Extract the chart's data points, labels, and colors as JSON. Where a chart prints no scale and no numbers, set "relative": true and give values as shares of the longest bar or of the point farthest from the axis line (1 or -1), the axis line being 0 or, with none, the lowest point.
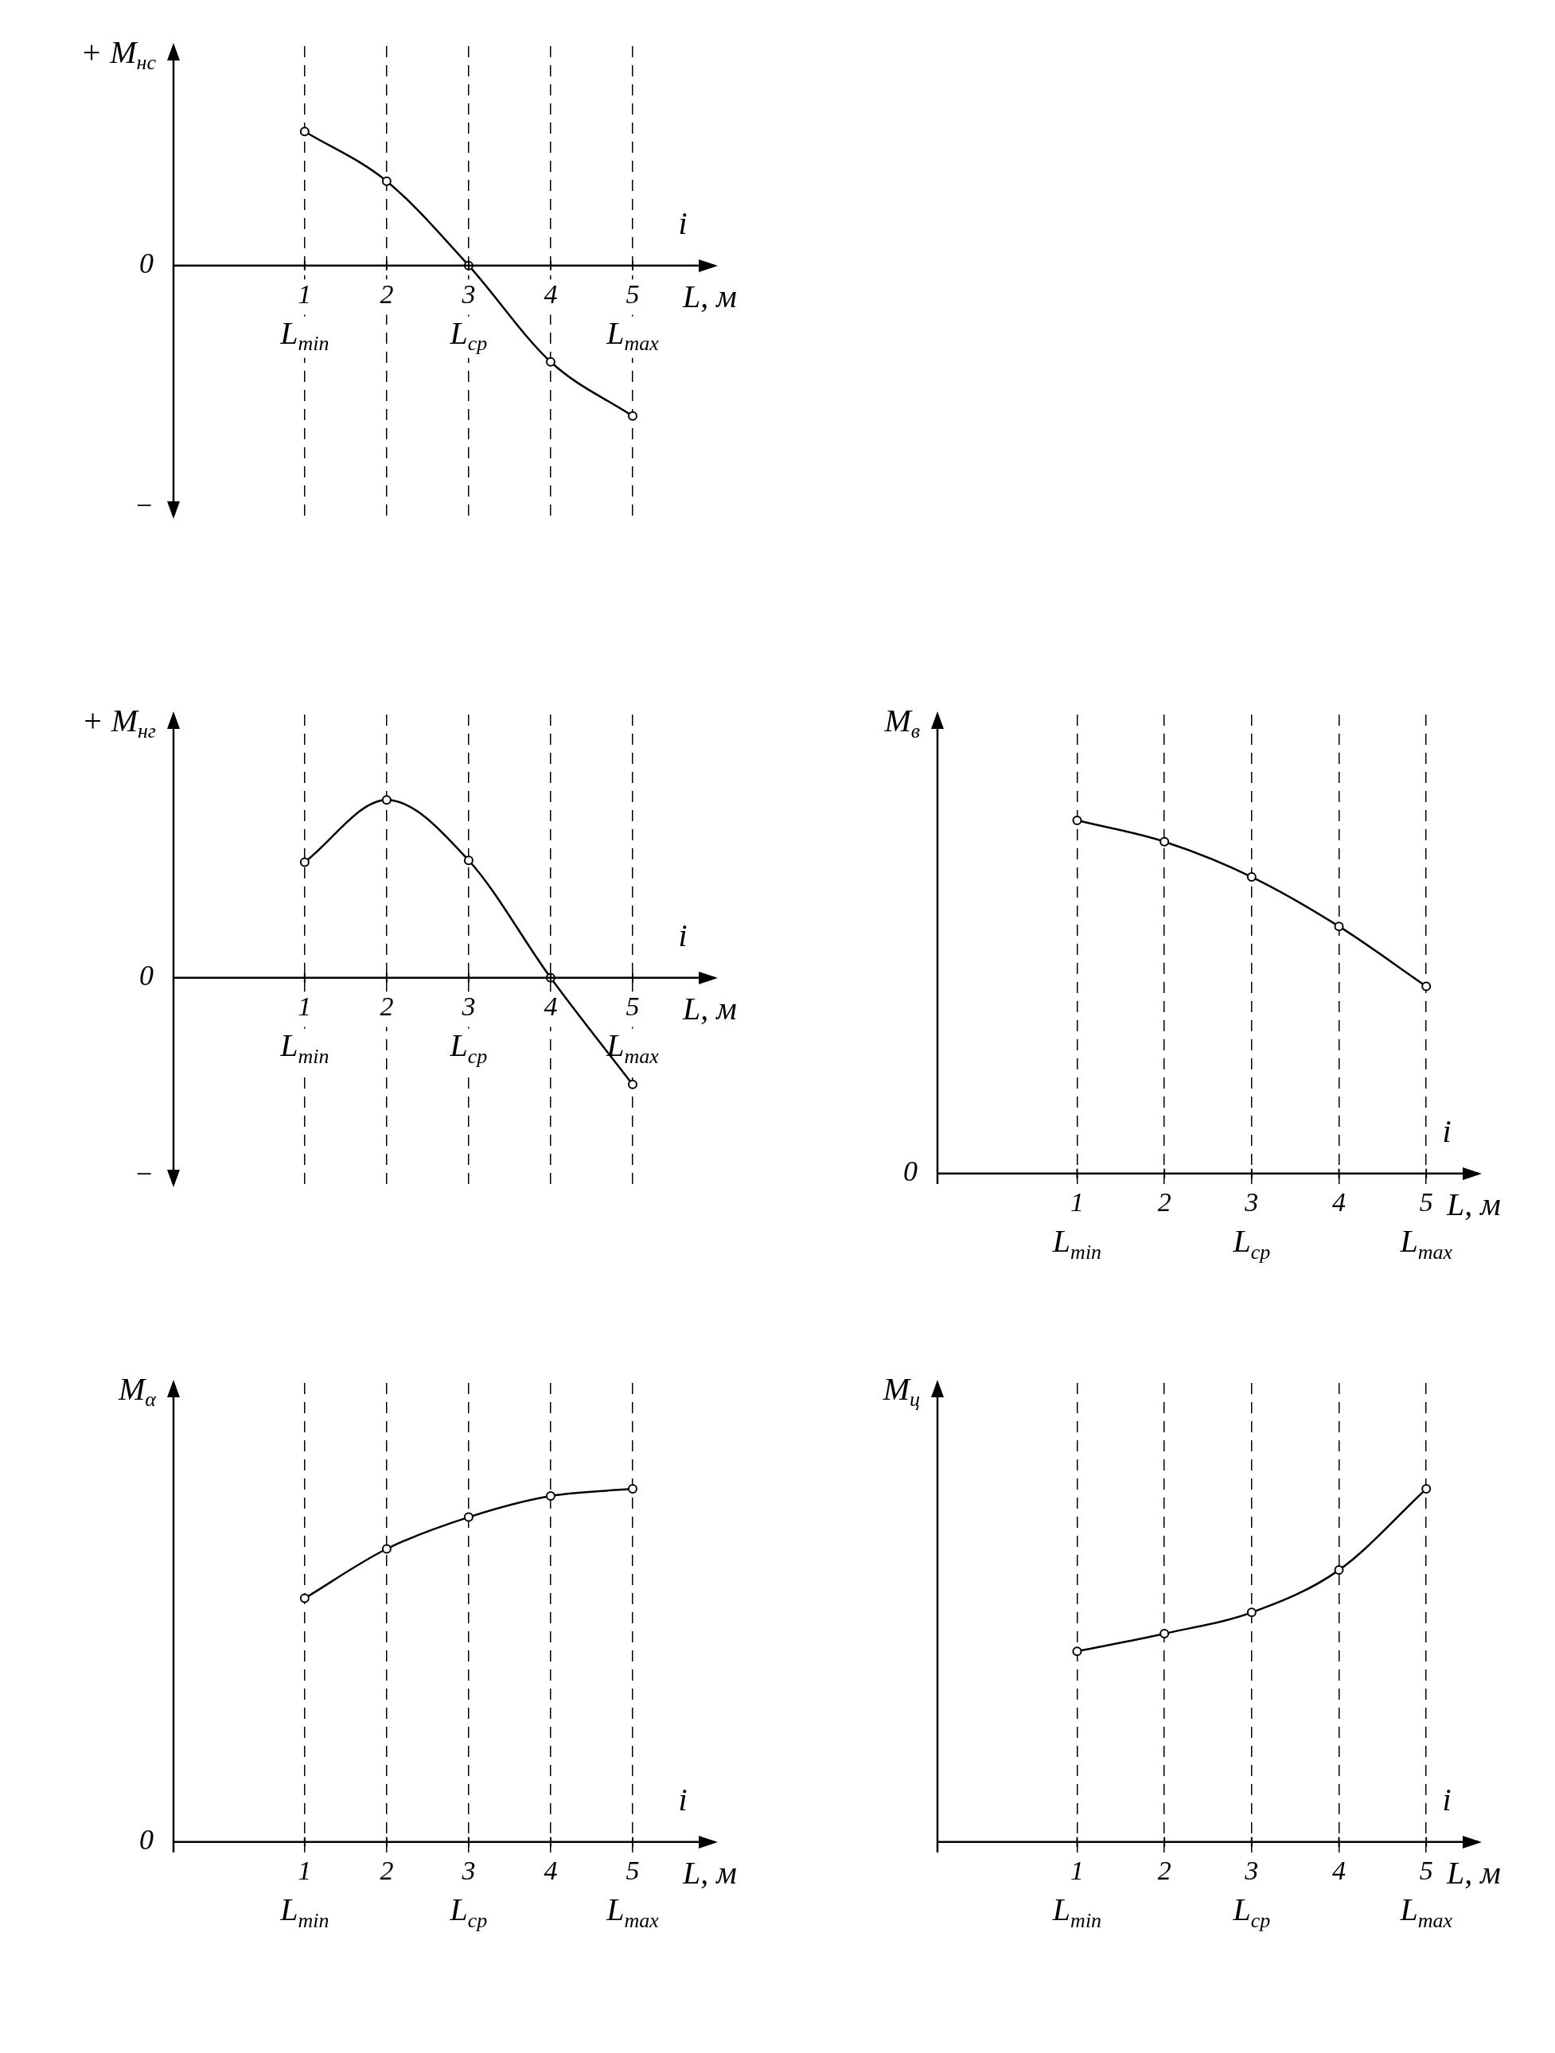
{
  "chart_data": [
    {
      "type": "line",
      "relative": true,
      "ylabel": "+ M$_{нс}$",
      "xlabel": "L, м",
      "x": [
        1,
        2,
        3,
        4,
        5
      ],
      "values": [
        0.89,
        0.56,
        0,
        -0.64,
        -1
      ],
      "color": "#000000",
      "marker": "circle",
      "grid": "x",
      "xlim": [
        -0.6,
        6
      ],
      "legend": false,
      "xticks": [
        {
          "value": 1,
          "label": "1\nL$_{min}$"
        },
        {
          "value": 2,
          "label": "2"
        },
        {
          "value": 3,
          "label": "3\nL$_{cp}$"
        },
        {
          "value": 4,
          "label": "4"
        },
        {
          "value": 5,
          "label": "5\nL$_{max}$"
        }
      ],
      "annotations": [
        "0",
        "−",
        "i"
      ]
    },
    {
      "type": "line",
      "relative": true,
      "ylabel": "+ M$_{нг}$",
      "xlabel": "L, м",
      "x": [
        1,
        2,
        3,
        4,
        5
      ],
      "values": [
        0.65,
        1,
        0.66,
        0,
        -0.6
      ],
      "color": "#000000",
      "marker": "circle",
      "grid": "x",
      "xlim": [
        -0.6,
        6
      ],
      "legend": false,
      "xticks": [
        {
          "value": 1,
          "label": "1\nL$_{min}$"
        },
        {
          "value": 2,
          "label": "2"
        },
        {
          "value": 3,
          "label": "3\nL$_{cp}$"
        },
        {
          "value": 4,
          "label": "4"
        },
        {
          "value": 5,
          "label": "5\nL$_{max}$"
        }
      ],
      "annotations": [
        "0",
        "−",
        "i"
      ]
    },
    {
      "type": "line",
      "relative": true,
      "ylabel": "M$_{в}$",
      "xlabel": "L, м",
      "x": [
        1,
        2,
        3,
        4,
        5
      ],
      "values": [
        1,
        0.94,
        0.84,
        0.7,
        0.53
      ],
      "color": "#000000",
      "marker": "circle",
      "grid": "x",
      "xlim": [
        -0.6,
        5.6
      ],
      "legend": false,
      "xticks": [
        {
          "value": 1,
          "label": "1\nL$_{min}$"
        },
        {
          "value": 2,
          "label": "2"
        },
        {
          "value": 3,
          "label": "3\nL$_{cp}$"
        },
        {
          "value": 4,
          "label": "4"
        },
        {
          "value": 5,
          "label": "5\nL$_{max}$"
        }
      ],
      "annotations": [
        "0",
        "i"
      ]
    },
    {
      "type": "line",
      "relative": true,
      "ylabel": "M$_{α}$",
      "xlabel": "L, м",
      "x": [
        1,
        2,
        3,
        4,
        5
      ],
      "values": [
        0.69,
        0.83,
        0.92,
        0.98,
        1
      ],
      "color": "#000000",
      "marker": "circle",
      "grid": "x",
      "xlim": [
        -0.6,
        6
      ],
      "legend": false,
      "xticks": [
        {
          "value": 1,
          "label": "1\nL$_{min}$"
        },
        {
          "value": 2,
          "label": "2"
        },
        {
          "value": 3,
          "label": "3\nL$_{cp}$"
        },
        {
          "value": 4,
          "label": "4"
        },
        {
          "value": 5,
          "label": "5\nL$_{max}$"
        }
      ],
      "annotations": [
        "0",
        "i"
      ]
    },
    {
      "type": "line",
      "relative": true,
      "ylabel": "M$_{ц}$",
      "xlabel": "L, м",
      "x": [
        1,
        2,
        3,
        4,
        5
      ],
      "values": [
        0.54,
        0.59,
        0.65,
        0.77,
        1
      ],
      "color": "#000000",
      "marker": "circle",
      "grid": "x",
      "xlim": [
        -0.6,
        5.6
      ],
      "legend": false,
      "xticks": [
        {
          "value": 1,
          "label": "1\nL$_{min}$"
        },
        {
          "value": 2,
          "label": "2"
        },
        {
          "value": 3,
          "label": "3\nL$_{cp}$"
        },
        {
          "value": 4,
          "label": "4"
        },
        {
          "value": 5,
          "label": "5\nL$_{max}$"
        }
      ],
      "annotations": [
        "i"
      ]
    }
  ]
}
